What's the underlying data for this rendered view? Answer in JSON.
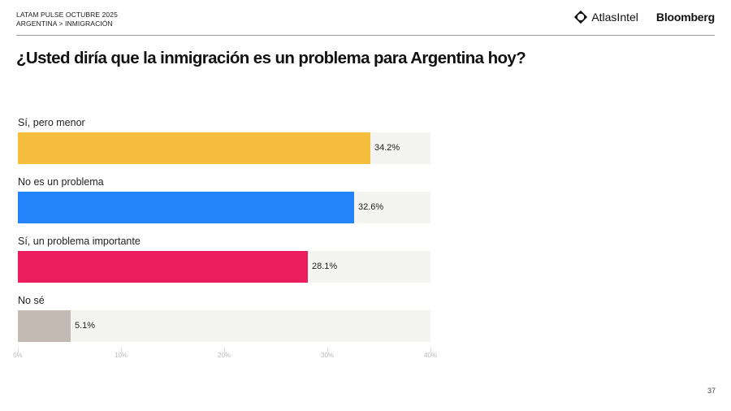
{
  "header": {
    "line1": "LATAM PULSE OCTUBRE 2025",
    "line2": "ARGENTINA > INMIGRACIÓN",
    "logo_atlas": "AtlasIntel",
    "logo_bloomberg": "Bloomberg"
  },
  "title": "¿Usted diría que la inmigración es un problema para Argentina hoy?",
  "page_number": "37",
  "chart_data": {
    "type": "bar",
    "orientation": "horizontal",
    "title": "¿Usted diría que la inmigración es un problema para Argentina hoy?",
    "categories": [
      "Sí, pero menor",
      "No es un problema",
      "Sí, un problema importante",
      "No sé"
    ],
    "values": [
      34.2,
      32.6,
      28.1,
      5.1
    ],
    "value_labels": [
      "34.2%",
      "32.6%",
      "28.1%",
      "5.1%"
    ],
    "colors": [
      "#f5bf3d",
      "#2483fb",
      "#ec1d5c",
      "#c4bab4"
    ],
    "xlim": [
      0,
      40
    ],
    "xticks": [
      "0%",
      "10%",
      "20%",
      "30%",
      "40%"
    ],
    "xlabel": "",
    "ylabel": "",
    "grid": false,
    "legend": "none"
  }
}
